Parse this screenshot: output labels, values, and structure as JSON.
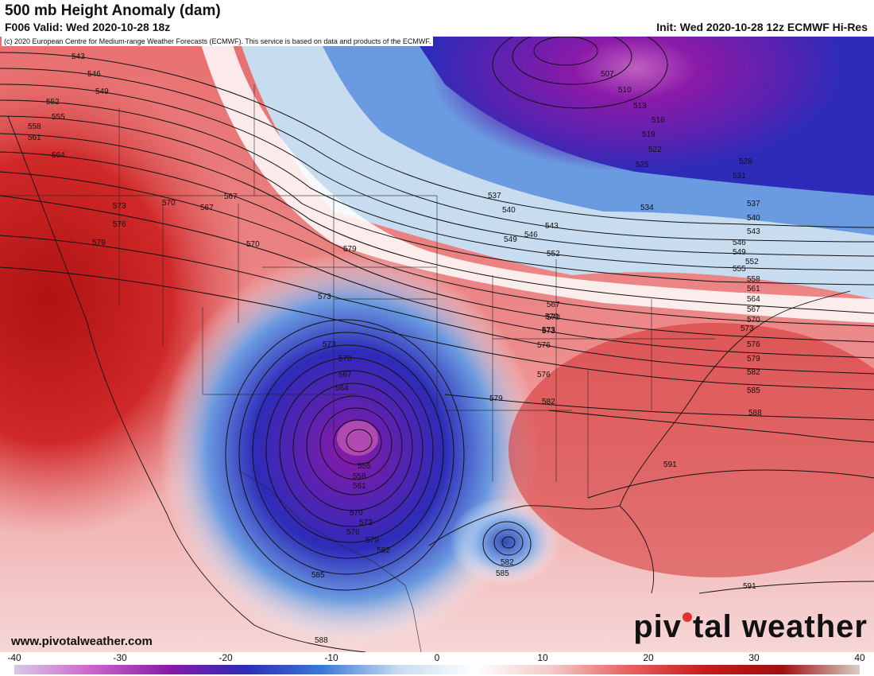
{
  "header": {
    "title": "500 mb Height Anomaly (dam)",
    "valid": "F006 Valid: Wed 2020-10-28 18z",
    "init": "Init: Wed 2020-10-28 12z ECMWF Hi-Res",
    "copyright": "(c) 2020 European Centre for Medium-range Weather Forecasts (ECMWF). This service is based on data and products of the ECMWF."
  },
  "footer": {
    "url": "www.pivotalweather.com",
    "logo_before": "piv",
    "logo_after": "tal weather"
  },
  "colorbar": {
    "ticks": [
      "-40",
      "-30",
      "-20",
      "-10",
      "0",
      "10",
      "20",
      "30",
      "40"
    ],
    "range": [
      -40,
      40
    ],
    "colors": [
      "#d8c8e8",
      "#cc66cc",
      "#8a1aa8",
      "#2e2bb8",
      "#3a78d8",
      "#c8dcf0",
      "#ffffff",
      "#f4c8c8",
      "#e86060",
      "#c81a1a",
      "#a01010",
      "#d8cfc8"
    ]
  },
  "map": {
    "fill_colors": {
      "deep_negative": "#8a1aa8",
      "strong_negative": "#2e2bb8",
      "moderate_negative": "#3a78d8",
      "weak_negative": "#c8dcf0",
      "neutral": "#ffffff",
      "weak_positive": "#f4c8c8",
      "moderate_positive": "#e07070",
      "strong_positive": "#c81a1a"
    },
    "contour_labels": [
      "543",
      "546",
      "549",
      "552",
      "555",
      "558",
      "561",
      "564",
      "567",
      "570",
      "573",
      "576",
      "579",
      "507",
      "510",
      "513",
      "516",
      "519",
      "522",
      "525",
      "528",
      "531",
      "534",
      "537",
      "540",
      "543",
      "546",
      "549",
      "552",
      "555",
      "558",
      "561",
      "564",
      "567",
      "570",
      "573",
      "576",
      "579",
      "582",
      "585",
      "588",
      "591",
      "591",
      "573",
      "570",
      "567",
      "564",
      "555",
      "558",
      "561",
      "570",
      "573",
      "576",
      "579",
      "582",
      "585",
      "582",
      "585",
      "588",
      "567",
      "570",
      "573",
      "576",
      "579",
      "582",
      "579",
      "537",
      "540",
      "543",
      "546",
      "549",
      "552",
      "567",
      "570",
      "573",
      "576",
      "570",
      "573"
    ]
  }
}
